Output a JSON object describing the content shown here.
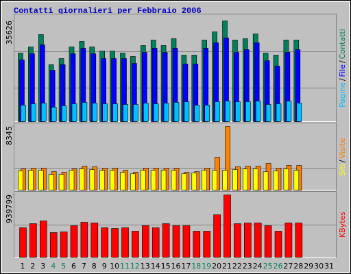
{
  "chart_data": [
    {
      "type": "bar",
      "title": "Contatti giornalieri per Febbraio 2006",
      "ylim": [
        0,
        37565
      ],
      "yticks": [
        35626
      ],
      "grid_values": [
        11875,
        24720
      ],
      "legend_separator": "/",
      "series": [
        {
          "name": "Pagine",
          "color": "#00c0ff",
          "values": [
            5820,
            6300,
            6540,
            5090,
            5580,
            6300,
            6790,
            6540,
            6300,
            6300,
            6060,
            6060,
            6540,
            6300,
            6540,
            6790,
            7030,
            5820,
            5820,
            7030,
            7270,
            7030,
            7030,
            7270,
            6060,
            6300,
            7270,
            6540,
            null,
            null,
            null
          ]
        },
        {
          "name": "File",
          "color": "#0000ff",
          "values": [
            21820,
            24000,
            27150,
            18180,
            20120,
            24000,
            25940,
            24000,
            22300,
            22300,
            22300,
            20600,
            24480,
            25940,
            24480,
            25940,
            20360,
            20360,
            25940,
            27880,
            29570,
            24480,
            25450,
            27880,
            21570,
            19630,
            24480,
            25450,
            null,
            null,
            null
          ]
        },
        {
          "name": "Contatti",
          "color": "#00805c",
          "values": [
            24240,
            26420,
            30785,
            20120,
            22300,
            26420,
            28360,
            26420,
            24970,
            24970,
            24240,
            23030,
            26910,
            28850,
            26910,
            29330,
            23510,
            23510,
            28850,
            31750,
            35626,
            28850,
            29330,
            31030,
            24240,
            23510,
            28850,
            28850,
            null,
            null,
            null
          ]
        }
      ]
    },
    {
      "type": "bar",
      "ylim": [
        0,
        8615
      ],
      "yticks": [
        8345
      ],
      "grid_values": [
        2870
      ],
      "legend_separator": "/",
      "series": [
        {
          "name": "Siti",
          "color": "#ffff00",
          "values": [
            2510,
            2600,
            2600,
            2060,
            2060,
            2600,
            2780,
            2690,
            2600,
            2600,
            2330,
            2150,
            2600,
            2600,
            2600,
            2600,
            2150,
            2240,
            2600,
            2600,
            2600,
            2690,
            2780,
            2780,
            2420,
            2510,
            2780,
            2600,
            null,
            null,
            null
          ]
        },
        {
          "name": "Visite",
          "color": "#ff8000",
          "values": [
            2780,
            2870,
            2870,
            2420,
            2330,
            2780,
            3140,
            3050,
            2870,
            2870,
            2600,
            2330,
            2870,
            2870,
            2870,
            2870,
            2330,
            2420,
            2870,
            4310,
            8345,
            3050,
            3140,
            3140,
            3500,
            2870,
            3230,
            3230,
            null,
            null,
            null
          ]
        }
      ]
    },
    {
      "type": "bar",
      "ylim": [
        0,
        970750
      ],
      "yticks": [
        939799
      ],
      "grid_values": [
        485400
      ],
      "categories": [
        "1",
        "2",
        "3",
        "4",
        "5",
        "6",
        "7",
        "8",
        "9",
        "10",
        "11",
        "12",
        "13",
        "14",
        "15",
        "16",
        "17",
        "18",
        "19",
        "20",
        "21",
        "22",
        "23",
        "24",
        "25",
        "26",
        "27",
        "28",
        "29",
        "30",
        "31"
      ],
      "category_colors": [
        "#000000",
        "#000000",
        "#000000",
        "#00805c",
        "#00805c",
        "#000000",
        "#000000",
        "#000000",
        "#000000",
        "#000000",
        "#00805c",
        "#00805c",
        "#000000",
        "#000000",
        "#000000",
        "#000000",
        "#000000",
        "#00805c",
        "#00805c",
        "#000000",
        "#000000",
        "#000000",
        "#000000",
        "#000000",
        "#00805c",
        "#00805c",
        "#000000",
        "#000000",
        "#000000",
        "#000000",
        "#000000"
      ],
      "series": [
        {
          "name": "KBytes",
          "color": "#ff0000",
          "values": [
            444060,
            506020,
            547330,
            371770,
            382100,
            475040,
            526680,
            516350,
            444060,
            433730,
            444060,
            392430,
            475040,
            444060,
            506020,
            475040,
            475040,
            392430,
            392430,
            640270,
            939799,
            506020,
            516350,
            516350,
            475040,
            392430,
            516350,
            516350,
            null,
            null,
            null
          ]
        }
      ]
    }
  ]
}
